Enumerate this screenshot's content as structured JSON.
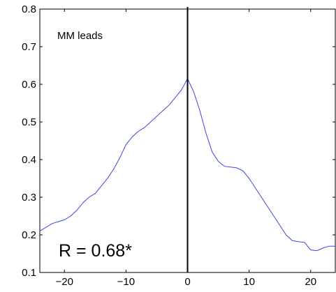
{
  "chart_data": {
    "type": "line",
    "title": "",
    "xlabel": "",
    "ylabel": "",
    "xlim": [
      -24,
      24
    ],
    "ylim": [
      0.1,
      0.8
    ],
    "xticks": [
      -20,
      -10,
      0,
      10,
      20
    ],
    "xtick_labels": [
      "−20",
      "−10",
      "0",
      "10",
      "20"
    ],
    "yticks": [
      0.1,
      0.2,
      0.3,
      0.4,
      0.5,
      0.6,
      0.7,
      0.8
    ],
    "ytick_labels": [
      "0.1",
      "0.2",
      "0.3",
      "0.4",
      "0.5",
      "0.6",
      "0.7",
      "0.8"
    ],
    "grid": false,
    "vertical_line_x": 0,
    "series": [
      {
        "color": "#3b46e0",
        "x": [
          -24,
          -23,
          -22,
          -21,
          -20,
          -19,
          -18,
          -17,
          -16,
          -15,
          -14,
          -13,
          -12,
          -11,
          -10,
          -9,
          -8,
          -7,
          -6,
          -5,
          -4,
          -3,
          -2,
          -1,
          0,
          1,
          2,
          3,
          4,
          5,
          6,
          7,
          8,
          9,
          10,
          11,
          12,
          13,
          14,
          15,
          16,
          17,
          18,
          19,
          20,
          21,
          22,
          23,
          24
        ],
        "values": [
          0.21,
          0.22,
          0.23,
          0.235,
          0.24,
          0.25,
          0.265,
          0.285,
          0.3,
          0.31,
          0.33,
          0.35,
          0.375,
          0.405,
          0.44,
          0.46,
          0.475,
          0.485,
          0.5,
          0.515,
          0.53,
          0.545,
          0.565,
          0.585,
          0.615,
          0.58,
          0.53,
          0.47,
          0.42,
          0.395,
          0.382,
          0.38,
          0.378,
          0.37,
          0.35,
          0.325,
          0.3,
          0.275,
          0.25,
          0.225,
          0.2,
          0.185,
          0.182,
          0.18,
          0.16,
          0.158,
          0.165,
          0.17,
          0.17
        ]
      }
    ],
    "annotations": [
      {
        "text": "MM  leads"
      },
      {
        "text": "R = 0.68*"
      }
    ]
  }
}
